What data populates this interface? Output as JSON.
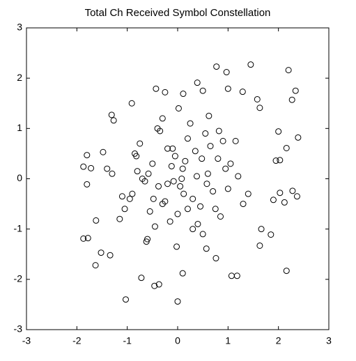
{
  "chart_data": {
    "type": "scatter",
    "title": "Total Ch Received Symbol Constellation",
    "x": [
      0.1,
      -0.2,
      0.3,
      -0.5,
      0.6,
      -0.1,
      0.0,
      0.2,
      -0.3,
      0.4,
      -0.7,
      0.8,
      -0.9,
      1.0,
      -0.4,
      0.5,
      0.15,
      -0.25,
      0.35,
      -0.55,
      0.7,
      -0.8,
      0.9,
      -1.1,
      1.2,
      -0.6,
      0.05,
      -0.05,
      0.25,
      -0.15,
      0.45,
      -0.35,
      0.65,
      -0.65,
      0.85,
      -0.85,
      1.05,
      -1.05,
      0.3,
      -0.3,
      0.55,
      -0.45,
      0.75,
      -0.75,
      0.95,
      -0.95,
      1.3,
      -1.3,
      0.12,
      -0.12,
      0.38,
      -0.38,
      0.62,
      -0.62,
      0.02,
      -0.02,
      0.2,
      -0.2,
      0.48,
      -0.48,
      1.15,
      -1.15,
      0.82,
      -0.82,
      1.4,
      -1.4,
      0.08,
      -0.08,
      0.58,
      -0.58,
      1.45,
      0.77,
      0.97,
      2.2,
      2.34,
      2.27,
      2.39,
      2.16,
      2.0,
      1.0,
      1.29,
      1.58,
      1.63,
      0.39,
      0.5,
      -0.43,
      -0.25,
      0.11,
      -0.91,
      -1.31,
      -1.27,
      -1.48,
      -1.87,
      -1.8,
      -1.72,
      -1.8,
      -1.87,
      -1.78,
      -1.63,
      -1.52,
      -1.34,
      -1.62,
      -1.03,
      0,
      -0.46,
      -0.37,
      -0.72,
      0.1,
      1.07,
      1.18,
      2.16,
      2.28,
      2.12,
      2.03,
      2.37,
      2.03,
      1.95,
      1.85,
      1.63,
      1.66,
      0.76,
      0.57,
      1.9
    ],
    "values": [
      0.2,
      -0.1,
      -0.4,
      0.3,
      0.1,
      0.6,
      -0.7,
      0.8,
      -0.5,
      -0.9,
      0.0,
      0.4,
      -0.3,
      -0.2,
      1.0,
      -1.1,
      0.35,
      -0.45,
      0.55,
      -0.65,
      -0.25,
      0.15,
      0.75,
      -0.35,
      0.05,
      -1.2,
      -0.15,
      0.45,
      1.1,
      -0.85,
      -0.55,
      0.95,
      0.65,
      -0.05,
      -0.75,
      0.5,
      0.3,
      -0.6,
      -1.0,
      1.2,
      0.9,
      -0.95,
      -0.6,
      0.7,
      0.2,
      -0.4,
      -0.5,
      0.1,
      -0.3,
      0.25,
      0.05,
      -0.15,
      1.25,
      -1.25,
      1.4,
      -1.35,
      -0.6,
      0.6,
      0.4,
      -0.4,
      0.75,
      -0.8,
      0.95,
      0.45,
      -0.3,
      0.2,
      0.0,
      -0.05,
      -0.1,
      0.1,
      2.27,
      2.23,
      2.12,
      2.16,
      1.75,
      1.57,
      0.82,
      0.61,
      0.94,
      1.79,
      1.73,
      1.58,
      1.41,
      1.91,
      1.75,
      1.79,
      1.72,
      1.69,
      1.5,
      1.27,
      1.16,
      0.53,
      0.24,
      0.47,
      0.21,
      -0.11,
      -1.19,
      -1.18,
      -1.72,
      -1.47,
      -1.52,
      -0.83,
      -2.4,
      -2.44,
      -2.13,
      -2.1,
      -1.97,
      -1.88,
      -1.93,
      -1.93,
      -1.83,
      -0.24,
      -0.47,
      -0.28,
      -0.35,
      0.37,
      0.36,
      -1.11,
      -1.33,
      -1.0,
      -1.58,
      -1.39,
      -0.42
    ],
    "color": "#000000",
    "xlim": [
      -3,
      3
    ],
    "xticks": [
      -3,
      -2,
      -1,
      0,
      1,
      2,
      3
    ],
    "ylim": [
      -3,
      3
    ],
    "yticks": [
      -3,
      -2,
      -1,
      0,
      1,
      2,
      3
    ],
    "grid": false
  }
}
